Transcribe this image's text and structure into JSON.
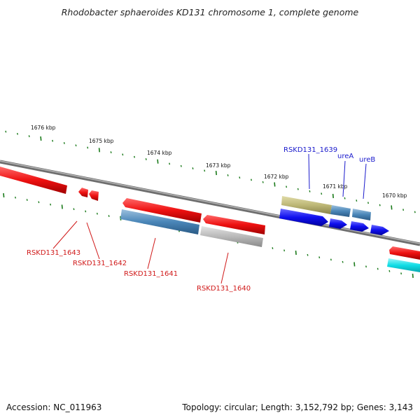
{
  "title": "Rhodobacter sphaeroides KD131 chromosome 1, complete genome",
  "footer": {
    "accession": "Accession: NC_011963",
    "topology": "Topology: circular; Length: 3,152,792 bp; Genes: 3,143"
  },
  "kbp_labels": [
    "1676 kbp",
    "1675 kbp",
    "1674 kbp",
    "1673 kbp",
    "1672 kbp",
    "1671 kbp",
    "1670 kbp"
  ],
  "gene_labels": {
    "rskd131_1643": "RSKD131_1643",
    "rskd131_1642": "RSKD131_1642",
    "rskd131_1641": "RSKD131_1641",
    "rskd131_1640": "RSKD131_1640",
    "rskd131_1639": "RSKD131_1639",
    "urea": "ureA",
    "ureb": "ureB"
  },
  "colors": {
    "backbone": "#808080",
    "tick": "#1a7a1a",
    "red_gene": "#ee1111",
    "steel_gene": "#4a86b8",
    "grey_gene": "#b8b8b8",
    "olive_gene": "#bdb776",
    "blue_gene": "#1010ee",
    "cyan_gene": "#10dde6"
  }
}
